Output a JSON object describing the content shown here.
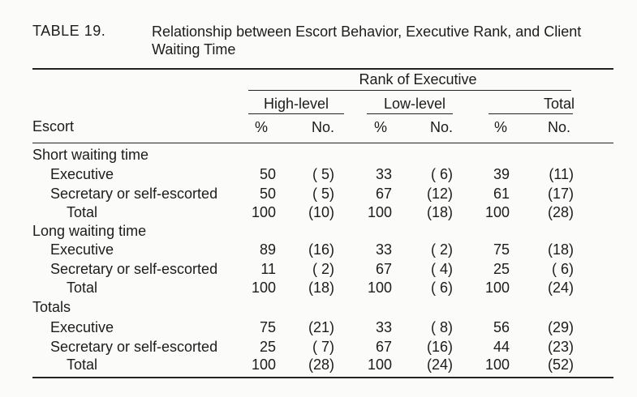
{
  "caption": {
    "label": "TABLE 19.",
    "title": "Relationship between Escort Behavior, Executive Rank, and Client Waiting Time"
  },
  "header": {
    "spanner": "Rank of Executive",
    "groups": [
      "High-level",
      "Low-level",
      "Total"
    ],
    "stub": "Escort",
    "pct": "%",
    "no": "No."
  },
  "rows": [
    {
      "type": "section",
      "label": "Short waiting time"
    },
    {
      "type": "data",
      "label": "Executive",
      "indent": 1,
      "values": [
        "50",
        "( 5)",
        "33",
        "( 6)",
        "39",
        "(11)"
      ]
    },
    {
      "type": "data",
      "label": "Secretary or self-escorted",
      "indent": 1,
      "values": [
        "50",
        "( 5)",
        "67",
        "(12)",
        "61",
        "(17)"
      ]
    },
    {
      "type": "data",
      "label": "Total",
      "indent": 2,
      "values": [
        "100",
        "(10)",
        "100",
        "(18)",
        "100",
        "(28)"
      ]
    },
    {
      "type": "section",
      "label": "Long waiting time"
    },
    {
      "type": "data",
      "label": "Executive",
      "indent": 1,
      "values": [
        "89",
        "(16)",
        "33",
        "( 2)",
        "75",
        "(18)"
      ]
    },
    {
      "type": "data",
      "label": "Secretary or self-escorted",
      "indent": 1,
      "values": [
        "11",
        "( 2)",
        "67",
        "( 4)",
        "25",
        "( 6)"
      ]
    },
    {
      "type": "data",
      "label": "Total",
      "indent": 2,
      "values": [
        "100",
        "(18)",
        "100",
        "( 6)",
        "100",
        "(24)"
      ]
    },
    {
      "type": "section",
      "label": "Totals"
    },
    {
      "type": "data",
      "label": "Executive",
      "indent": 1,
      "values": [
        "75",
        "(21)",
        "33",
        "( 8)",
        "56",
        "(29)"
      ]
    },
    {
      "type": "data",
      "label": "Secretary or self-escorted",
      "indent": 1,
      "values": [
        "25",
        "( 7)",
        "67",
        "(16)",
        "44",
        "(23)"
      ]
    },
    {
      "type": "data",
      "label": "Total",
      "indent": 2,
      "values": [
        "100",
        "(28)",
        "100",
        "(24)",
        "100",
        "(52)"
      ]
    }
  ]
}
